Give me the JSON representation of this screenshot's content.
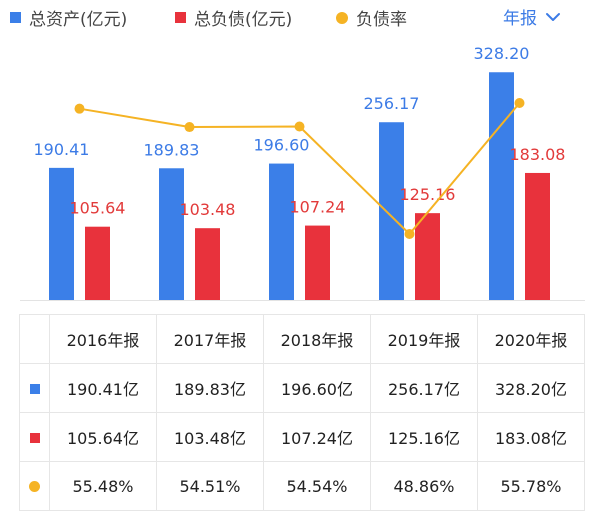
{
  "legend": {
    "assets_label": "总资产(亿元)",
    "liabilities_label": "总负债(亿元)",
    "ratio_label": "负债率"
  },
  "period_selector": {
    "label": "年报"
  },
  "colors": {
    "assets": "#3b7fe8",
    "liabilities": "#e8323c",
    "ratio": "#f5b324",
    "blue_text": "#3c7be6",
    "red_text": "#e23a3a"
  },
  "chart_data": {
    "type": "bar",
    "categories": [
      "2016年报",
      "2017年报",
      "2018年报",
      "2019年报",
      "2020年报"
    ],
    "series": [
      {
        "name": "总资产(亿元)",
        "values": [
          190.41,
          189.83,
          196.6,
          256.17,
          328.2
        ],
        "value_labels": [
          "190.41",
          "189.83",
          "196.60",
          "256.17",
          "328.20"
        ]
      },
      {
        "name": "总负债(亿元)",
        "values": [
          105.64,
          103.48,
          107.24,
          125.16,
          183.08
        ],
        "value_labels": [
          "105.64",
          "103.48",
          "107.24",
          "125.16",
          "183.08"
        ]
      },
      {
        "name": "负债率",
        "type": "line",
        "values": [
          55.48,
          54.51,
          54.54,
          48.86,
          55.78
        ]
      }
    ]
  },
  "table": {
    "headers": [
      "2016年报",
      "2017年报",
      "2018年报",
      "2019年报",
      "2020年报"
    ],
    "rows": [
      {
        "key": "assets",
        "cells": [
          "190.41亿",
          "189.83亿",
          "196.60亿",
          "256.17亿",
          "328.20亿"
        ]
      },
      {
        "key": "liabilities",
        "cells": [
          "105.64亿",
          "103.48亿",
          "107.24亿",
          "125.16亿",
          "183.08亿"
        ]
      },
      {
        "key": "ratio",
        "cells": [
          "55.48%",
          "54.51%",
          "54.54%",
          "48.86%",
          "55.78%"
        ]
      }
    ]
  }
}
